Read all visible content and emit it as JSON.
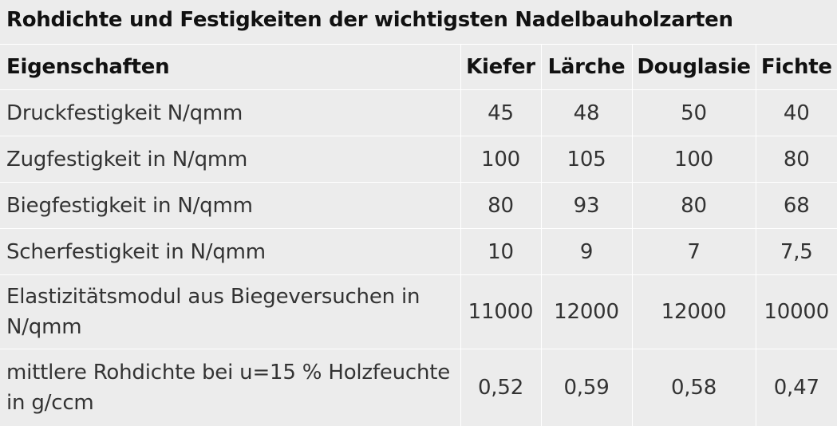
{
  "caption": "Rohdichte und Festigkeiten der wichtigsten Nadelbauholzarten",
  "headers": [
    "Eigenschaften",
    "Kiefer",
    "Lärche",
    "Douglasie",
    "Fichte"
  ],
  "rows": [
    {
      "label": "Druckfestigkeit N/qmm",
      "values": [
        "45",
        "48",
        "50",
        "40"
      ]
    },
    {
      "label": "Zugfestigkeit in N/qmm",
      "values": [
        "100",
        "105",
        "100",
        "80"
      ]
    },
    {
      "label": "Biegfestigkeit in N/qmm",
      "values": [
        "80",
        "93",
        "80",
        "68"
      ]
    },
    {
      "label": "Scherfestigkeit in N/qmm",
      "values": [
        "10",
        "9",
        "7",
        "7,5"
      ]
    },
    {
      "label": "Elastizitätsmodul aus Biegeversuchen in N/qmm",
      "values": [
        "11000",
        "12000",
        "12000",
        "10000"
      ]
    },
    {
      "label": "mittlere Rohdichte bei u=15 % Holzfeuchte in g/ccm",
      "values": [
        "0,52",
        "0,59",
        "0,58",
        "0,47"
      ]
    }
  ]
}
